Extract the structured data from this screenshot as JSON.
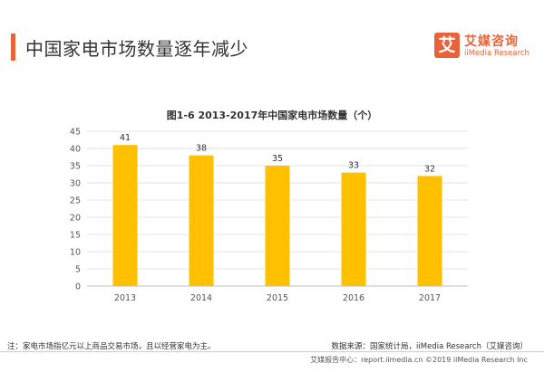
{
  "header": {
    "title": "中国家电市场数量逐年减少",
    "accent_color": "#e8623a"
  },
  "logo": {
    "glyph": "艾",
    "name_cn": "艾媒咨询",
    "name_en": "iiMedia Research"
  },
  "chart_data": {
    "type": "bar",
    "title": "图1-6 2013-2017年中国家电市场数量（个）",
    "categories": [
      "2013",
      "2014",
      "2015",
      "2016",
      "2017"
    ],
    "values": [
      41,
      38,
      35,
      33,
      32
    ],
    "ylim": [
      0,
      45
    ],
    "yticks": [
      0,
      5,
      10,
      15,
      20,
      25,
      30,
      35,
      40,
      45
    ],
    "grid": true,
    "bar_color": "#ffc000",
    "xlabel": "",
    "ylabel": ""
  },
  "footnote": "注：家电市场指亿元以上商品交易市场，且以经营家电为主。",
  "source": "数据来源：国家统计局，iiMedia Research（艾媒咨询）",
  "footer": "艾媒报告中心：report.iimedia.cn  ©2019  iiMedia Research  Inc"
}
